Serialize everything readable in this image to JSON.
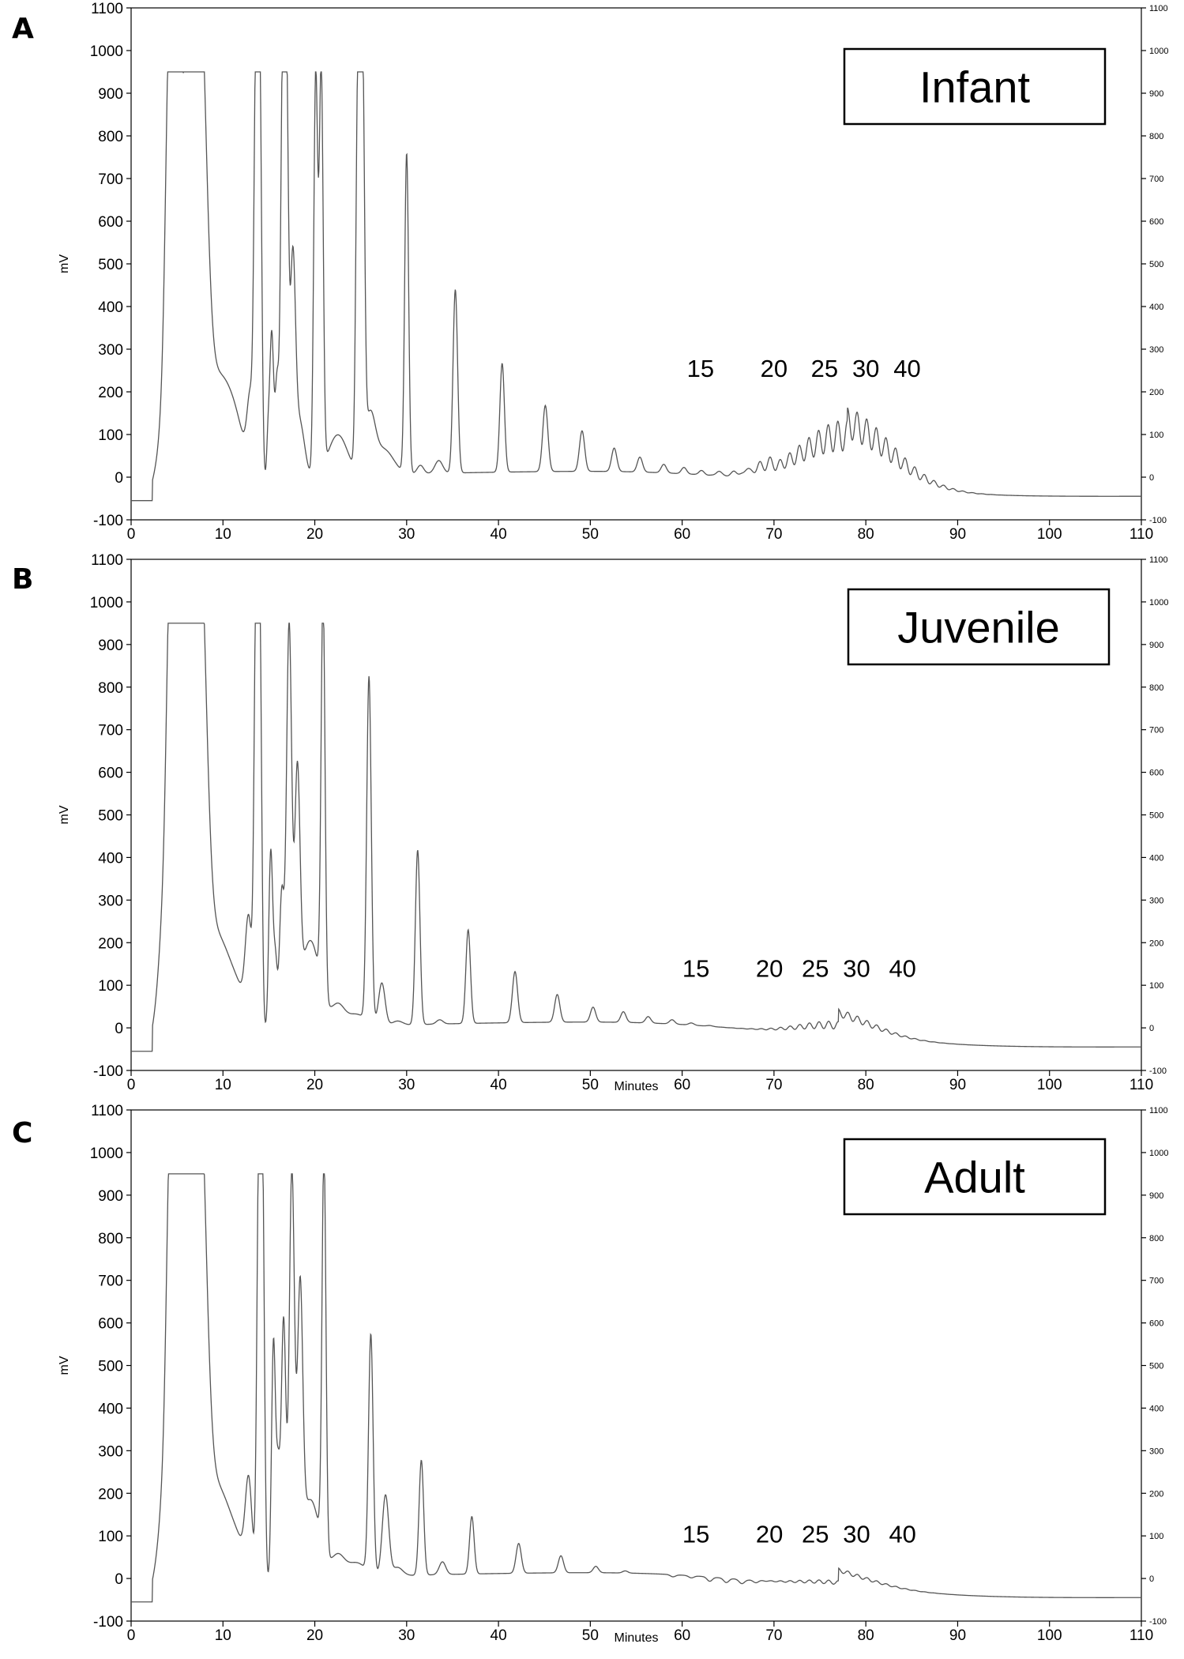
{
  "chart_data": [
    {
      "type": "line",
      "panel_letter": "A",
      "stage": "Infant",
      "ylabel": "mV",
      "xlabel": "",
      "xlim": [
        0,
        110
      ],
      "ylim": [
        -100,
        1100
      ],
      "x_ticks": [
        "0",
        "10",
        "20",
        "30",
        "40",
        "50",
        "60",
        "70",
        "80",
        "90",
        "100",
        "110"
      ],
      "y_ticks": [
        "-100",
        "0",
        "100",
        "200",
        "300",
        "400",
        "500",
        "600",
        "700",
        "800",
        "900",
        "1000",
        "1100"
      ],
      "baseline_start": -55,
      "baseline_end": -45,
      "peak_labels": [
        {
          "text": "15",
          "x": 62
        },
        {
          "text": "20",
          "x": 70
        },
        {
          "text": "25",
          "x": 75.5
        },
        {
          "text": "30",
          "x": 80
        },
        {
          "text": "40",
          "x": 84.5
        }
      ],
      "label_y": 235,
      "hump": {
        "center": 78,
        "height": 160,
        "width": 7
      },
      "series": [
        {
          "x": [
            2.5,
            3.5,
            4.2,
            4.8,
            5.2,
            6.0,
            7.5,
            9.0,
            10.5,
            11.5,
            13.0,
            13.6,
            14.0,
            14.9,
            15.3,
            15.9,
            16.5,
            16.9,
            17.6,
            18.3,
            20.1,
            20.7,
            22.5,
            24.7,
            25.2,
            26.0,
            27.5,
            30.0,
            31.5,
            33.5,
            35.3,
            37.5,
            40.4,
            45.1,
            49.1,
            52.6,
            55.4,
            58.0,
            60.2,
            62.1,
            64.0,
            65.7,
            67.1,
            68.4,
            69.5
          ],
          "y": [
            20,
            170,
            950,
            950,
            600,
            950,
            950,
            200,
            100,
            75,
            180,
            950,
            950,
            100,
            360,
            250,
            950,
            950,
            490,
            150,
            950,
            950,
            110,
            950,
            950,
            140,
            70,
            760,
            30,
            40,
            440,
            10,
            265,
            165,
            105,
            65,
            45,
            30,
            25,
            20,
            20,
            20,
            25,
            30,
            30
          ],
          "w": [
            0.4,
            0.8,
            0.6,
            0.4,
            0.3,
            1.2,
            1.0,
            2.0,
            2.0,
            1.5,
            0.5,
            0.3,
            0.3,
            0.2,
            0.3,
            0.3,
            0.3,
            0.3,
            0.4,
            0.8,
            0.3,
            0.3,
            1.5,
            0.3,
            0.3,
            0.8,
            1.5,
            0.3,
            0.5,
            0.6,
            0.35,
            1.0,
            0.35,
            0.4,
            0.4,
            0.4,
            0.4,
            0.4,
            0.4,
            0.4,
            0.4,
            0.4,
            0.4,
            0.4,
            0.4
          ]
        }
      ]
    },
    {
      "type": "line",
      "panel_letter": "B",
      "stage": "Juvenile",
      "ylabel": "mV",
      "xlabel": "Minutes",
      "xlim": [
        0,
        110
      ],
      "ylim": [
        -100,
        1100
      ],
      "x_ticks": [
        "0",
        "10",
        "20",
        "30",
        "40",
        "50",
        "60",
        "70",
        "80",
        "90",
        "100",
        "110"
      ],
      "y_ticks": [
        "-100",
        "0",
        "100",
        "200",
        "300",
        "400",
        "500",
        "600",
        "700",
        "800",
        "900",
        "1000",
        "1100"
      ],
      "baseline_start": -55,
      "baseline_end": -45,
      "peak_labels": [
        {
          "text": "15",
          "x": 61.5
        },
        {
          "text": "20",
          "x": 69.5
        },
        {
          "text": "25",
          "x": 74.5
        },
        {
          "text": "30",
          "x": 79
        },
        {
          "text": "40",
          "x": 84
        }
      ],
      "label_y": 120,
      "hump": {
        "center": 77,
        "height": 40,
        "width": 6
      },
      "series": [
        {
          "x": [
            2.5,
            3.5,
            4.3,
            4.8,
            5.2,
            6.0,
            7.5,
            9.0,
            10.5,
            12.0,
            12.8,
            13.6,
            14.0,
            15.2,
            15.7,
            16.4,
            17.2,
            18.1,
            19.5,
            20.9,
            22.5,
            24.5,
            25.9,
            27.3,
            29.0,
            31.2,
            33.6,
            36.7,
            41.8,
            46.4,
            50.3,
            53.6,
            56.3,
            58.9,
            61.0,
            63.0,
            64.8,
            66.5,
            68.0
          ],
          "y": [
            20,
            270,
            950,
            950,
            870,
            950,
            950,
            200,
            80,
            60,
            230,
            950,
            950,
            430,
            180,
            330,
            950,
            550,
            220,
            950,
            60,
            40,
            820,
            110,
            20,
            420,
            20,
            230,
            130,
            75,
            45,
            35,
            25,
            20,
            15,
            12,
            10,
            10,
            10
          ],
          "w": [
            0.4,
            0.8,
            0.6,
            0.3,
            0.3,
            1.2,
            1.0,
            2.0,
            2.0,
            1.5,
            0.5,
            0.3,
            0.3,
            0.3,
            0.3,
            0.35,
            0.4,
            0.4,
            1.5,
            0.3,
            1.0,
            1.5,
            0.35,
            0.5,
            0.8,
            0.35,
            0.5,
            0.35,
            0.4,
            0.4,
            0.4,
            0.4,
            0.4,
            0.4,
            0.4,
            0.4,
            0.4,
            0.4,
            0.4
          ]
        }
      ]
    },
    {
      "type": "line",
      "panel_letter": "C",
      "stage": "Adult",
      "ylabel": "mV",
      "xlabel": "Minutes",
      "xlim": [
        0,
        110
      ],
      "ylim": [
        -100,
        1100
      ],
      "x_ticks": [
        "0",
        "10",
        "20",
        "30",
        "40",
        "50",
        "60",
        "70",
        "80",
        "90",
        "100",
        "110"
      ],
      "y_ticks": [
        "-100",
        "0",
        "100",
        "200",
        "300",
        "400",
        "500",
        "600",
        "700",
        "800",
        "900",
        "1000",
        "1100"
      ],
      "baseline_start": -55,
      "baseline_end": -45,
      "peak_labels": [
        {
          "text": "15",
          "x": 61.5
        },
        {
          "text": "20",
          "x": 69.5
        },
        {
          "text": "25",
          "x": 74.5
        },
        {
          "text": "30",
          "x": 79
        },
        {
          "text": "40",
          "x": 84
        }
      ],
      "label_y": 85,
      "hump": {
        "center": 77,
        "height": 20,
        "width": 6
      },
      "series": [
        {
          "x": [
            2.5,
            3.5,
            4.3,
            4.8,
            5.2,
            6.0,
            7.5,
            9.0,
            10.5,
            12.0,
            12.8,
            13.9,
            14.3,
            15.5,
            16.0,
            16.6,
            17.5,
            18.4,
            19.5,
            21.0,
            22.5,
            24.5,
            26.1,
            27.7,
            29.0,
            31.6,
            33.9,
            37.1,
            42.2,
            46.8,
            50.6,
            53.8,
            56.5,
            59.0,
            61.0,
            63.0,
            64.8,
            66.5,
            68.0
          ],
          "y": [
            20,
            210,
            950,
            950,
            740,
            950,
            950,
            200,
            80,
            55,
            210,
            950,
            950,
            570,
            260,
            620,
            950,
            610,
            200,
            950,
            60,
            45,
            570,
            200,
            30,
            280,
            40,
            145,
            80,
            50,
            25,
            15,
            10,
            5,
            5,
            0,
            0,
            0,
            5
          ],
          "w": [
            0.4,
            0.8,
            0.6,
            0.3,
            0.3,
            1.2,
            1.0,
            2.0,
            2.0,
            1.5,
            0.5,
            0.3,
            0.3,
            0.3,
            0.3,
            0.35,
            0.4,
            0.4,
            1.5,
            0.3,
            1.0,
            1.5,
            0.35,
            0.5,
            0.8,
            0.35,
            0.5,
            0.35,
            0.4,
            0.4,
            0.4,
            0.4,
            0.4,
            0.4,
            0.4,
            0.4,
            0.4,
            0.4,
            0.4
          ]
        }
      ]
    }
  ]
}
